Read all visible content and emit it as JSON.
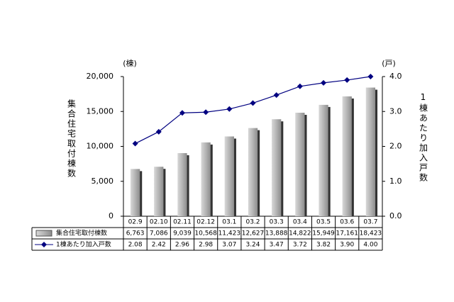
{
  "chart_data": {
    "type": "bar-line",
    "y_label": "集合住宅取付棟数",
    "y_unit": "(棟)",
    "y2_label": "1棟あたり加入戸数",
    "y2_unit": "(戸)",
    "categories": [
      "02.9",
      "02.10",
      "02.11",
      "02.12",
      "03.1",
      "03.2",
      "03.3",
      "03.4",
      "03.5",
      "03.6",
      "03.7"
    ],
    "series": [
      {
        "name": "集合住宅取付棟数",
        "type": "bar",
        "color": "#a0a0a0",
        "values": [
          6763,
          7086,
          9039,
          10568,
          11423,
          12627,
          13888,
          14822,
          15949,
          17161,
          18423
        ],
        "value_labels": [
          "6,763",
          "7,086",
          "9,039",
          "10,568",
          "11,423",
          "12,627",
          "13,888",
          "14,822",
          "15,949",
          "17,161",
          "18,423"
        ]
      },
      {
        "name": "1棟あたり加入戸数",
        "type": "line",
        "axis": "y2",
        "color": "#000080",
        "values": [
          2.08,
          2.42,
          2.96,
          2.98,
          3.07,
          3.24,
          3.47,
          3.72,
          3.82,
          3.9,
          4.0
        ],
        "value_labels": [
          "2.08",
          "2.42",
          "2.96",
          "2.98",
          "3.07",
          "3.24",
          "3.47",
          "3.72",
          "3.82",
          "3.90",
          "4.00"
        ]
      }
    ],
    "ylim": [
      0,
      20000
    ],
    "yticks": [
      0,
      {
        "value": 5000,
        "label": "5,000"
      },
      {
        "value": 10000,
        "label": "10,000"
      },
      {
        "value": 15000,
        "label": "15,000"
      },
      {
        "value": 20000,
        "label": "20,000"
      }
    ],
    "y2lim": [
      0,
      4
    ],
    "y2ticks": [
      {
        "value": 0,
        "label": "0.0"
      },
      {
        "value": 1,
        "label": "1.0"
      },
      {
        "value": 2,
        "label": "2.0"
      },
      {
        "value": 3,
        "label": "3.0"
      },
      {
        "value": 4,
        "label": "4.0"
      }
    ]
  }
}
